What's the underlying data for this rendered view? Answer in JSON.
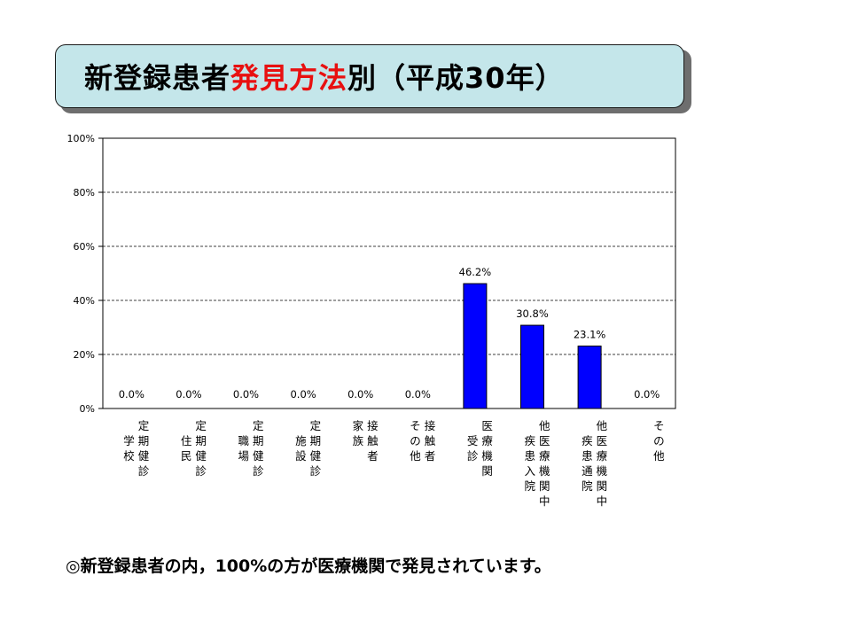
{
  "title": {
    "part1": "新登録患者",
    "part2": "発見方法",
    "part3": "別（平成30年）",
    "accent_color": "#e81010",
    "box_color": "#c4e6ea"
  },
  "footer": "◎新登録患者の内，100%の方が医療機関で発見されています。",
  "chart_data": {
    "type": "bar",
    "title": "",
    "xlabel": "",
    "ylabel": "",
    "ylim": [
      0,
      100
    ],
    "yticks": [
      "0%",
      "20%",
      "40%",
      "60%",
      "80%",
      "100%"
    ],
    "grid": true,
    "bar_color": "#0000ff",
    "categories": [
      {
        "label_columns": [
          "定",
          "学期",
          "校健",
          "診"
        ],
        "full": "定期学校健診"
      },
      {
        "label_columns": [
          "定",
          "住期",
          "民健",
          "診"
        ],
        "full": "定期住民健診"
      },
      {
        "label_columns": [
          "定",
          "職期",
          "場健",
          "診"
        ],
        "full": "定期職場健診"
      },
      {
        "label_columns": [
          "定",
          "施期",
          "設健",
          "診"
        ],
        "full": "定期施設健診"
      },
      {
        "label_columns": [
          "家接",
          "族触",
          "者"
        ],
        "full": "家族接触者"
      },
      {
        "label_columns": [
          "そ接",
          "の触",
          "他者"
        ],
        "full": "その他接触者"
      },
      {
        "label_columns": [
          "医",
          "受療",
          "診機",
          "関"
        ],
        "full": "医療機関受診"
      },
      {
        "label_columns": [
          "他",
          "疾医",
          "患療",
          "入機",
          "院関",
          "中"
        ],
        "full": "他疾患入院中"
      },
      {
        "label_columns": [
          "他",
          "疾医",
          "患療",
          "通機",
          "院関",
          "中"
        ],
        "full": "他疾患通院中"
      },
      {
        "label_columns": [
          "そ",
          "の",
          "他"
        ],
        "full": "その他"
      }
    ],
    "values": [
      0.0,
      0.0,
      0.0,
      0.0,
      0.0,
      0.0,
      46.2,
      30.8,
      23.1,
      0.0
    ],
    "value_labels": [
      "0.0%",
      "0.0%",
      "0.0%",
      "0.0%",
      "0.0%",
      "0.0%",
      "46.2%",
      "30.8%",
      "23.1%",
      "0.0%"
    ]
  }
}
